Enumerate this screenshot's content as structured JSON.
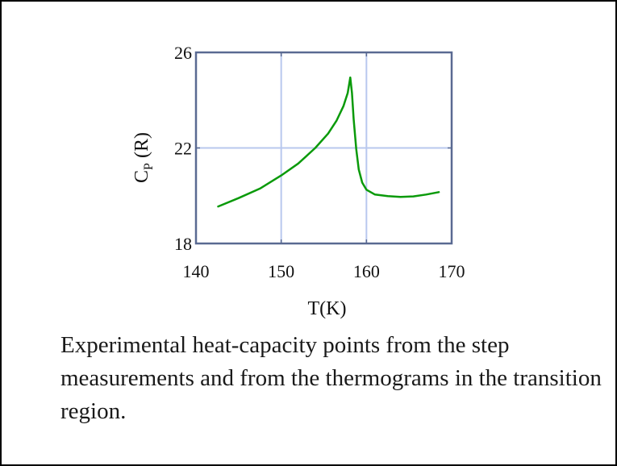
{
  "chart_data": {
    "type": "line",
    "xlabel": "T(K)",
    "ylabel": {
      "main": "C",
      "sub": "P",
      "suffix": " (R)"
    },
    "xlim": [
      140,
      170
    ],
    "ylim": [
      18,
      26
    ],
    "xticks": [
      140,
      150,
      160,
      170
    ],
    "yticks": [
      18,
      22,
      26
    ],
    "grid": true,
    "colors": {
      "line": "#0a9a0a",
      "grid": "#b8c8ee",
      "frame": "#5a6a92"
    },
    "series": [
      {
        "x": [
          142.6,
          145,
          147.5,
          150,
          152,
          154,
          155.5,
          156.5,
          157.3,
          157.8,
          158.1,
          158.3,
          158.5,
          158.8,
          159.1,
          159.5,
          160,
          161,
          162.5,
          164,
          165.5,
          167,
          168.5
        ],
        "y": [
          19.55,
          19.9,
          20.3,
          20.85,
          21.35,
          22.0,
          22.6,
          23.15,
          23.75,
          24.3,
          24.95,
          24.3,
          23.2,
          21.95,
          21.1,
          20.55,
          20.25,
          20.05,
          19.98,
          19.95,
          19.97,
          20.05,
          20.15
        ]
      }
    ]
  },
  "caption": "Experimental heat-capacity points from the step measurements and from the thermograms in the transition region."
}
